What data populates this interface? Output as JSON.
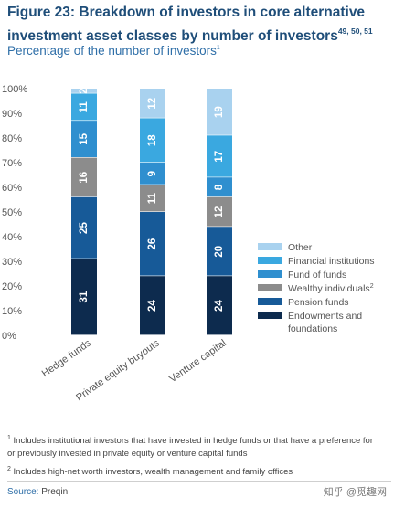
{
  "header": {
    "title": "Figure 23: Breakdown of investors in core alternative investment asset classes by number of investors",
    "title_refs": "49, 50, 51",
    "subtitle": "Percentage of the number of investors",
    "subtitle_ref": "1"
  },
  "chart_data": {
    "type": "bar",
    "stacked": true,
    "categories": [
      "Hedge funds",
      "Private equity buyouts",
      "Venture capital"
    ],
    "series": [
      {
        "name": "Endowments and foundations",
        "color": "#0d2b4e",
        "values": [
          31,
          24,
          24
        ]
      },
      {
        "name": "Pension funds",
        "color": "#175a98",
        "values": [
          25,
          26,
          20
        ]
      },
      {
        "name": "Wealthy individuals",
        "name_ref": "2",
        "color": "#8c8c8c",
        "values": [
          16,
          11,
          12
        ]
      },
      {
        "name": "Fund of funds",
        "color": "#2f8fcf",
        "values": [
          15,
          9,
          8
        ]
      },
      {
        "name": "Financial institutions",
        "color": "#3aa8e0",
        "values": [
          11,
          18,
          17
        ]
      },
      {
        "name": "Other",
        "color": "#a9d2ef",
        "values": [
          2,
          12,
          19
        ]
      }
    ],
    "ylim": [
      0,
      100
    ],
    "ytick_labels": [
      "0%",
      "10%",
      "20%",
      "30%",
      "40%",
      "50%",
      "60%",
      "70%",
      "80%",
      "90%",
      "100%"
    ],
    "legend_position": "right",
    "grid": false
  },
  "footnotes": [
    {
      "num": "1",
      "text": "Includes institutional investors that have invested in hedge funds or that have a preference for or previously invested in private equity or venture capital funds"
    },
    {
      "num": "2",
      "text": "Includes high-net worth investors, wealth management and family offices"
    }
  ],
  "source": {
    "label": "Source:",
    "value": "Preqin"
  },
  "watermark": "知乎 @觅趣网"
}
